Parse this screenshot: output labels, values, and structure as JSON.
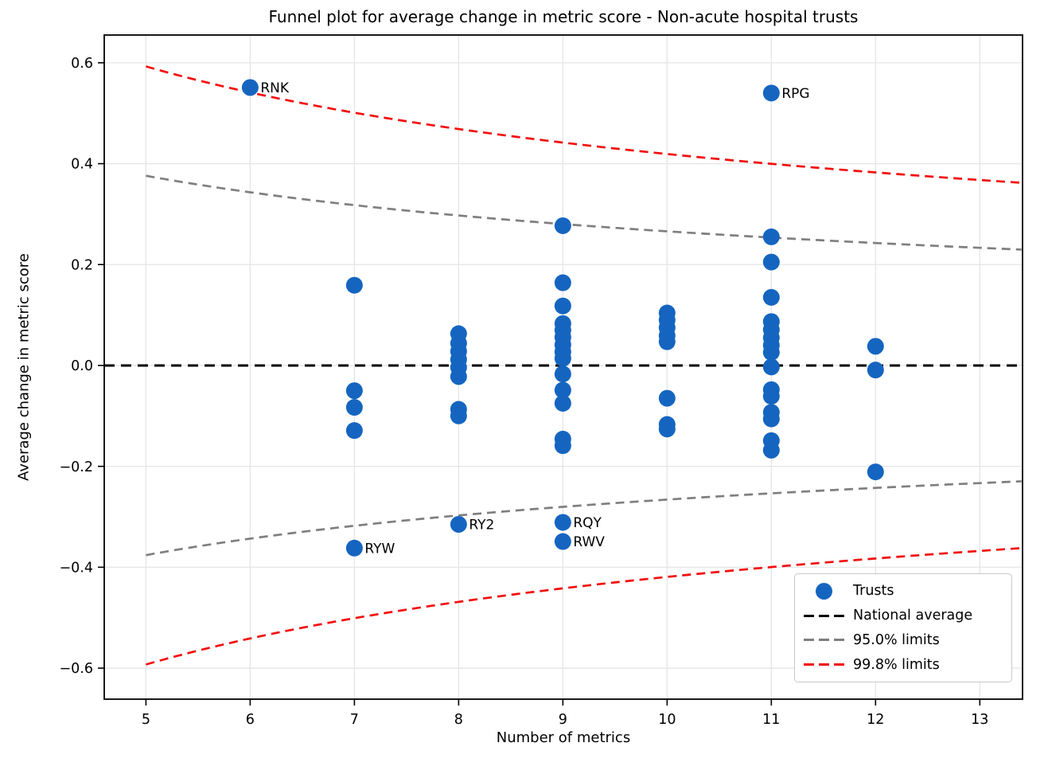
{
  "chart_data": {
    "type": "scatter",
    "title": "Funnel plot for average change in metric score - Non-acute hospital trusts",
    "xlabel": "Number of metrics",
    "ylabel": "Average change in metric score",
    "xlim": [
      4.6,
      13.41
    ],
    "ylim": [
      -0.6615,
      0.655
    ],
    "xticks": [
      5,
      6,
      7,
      8,
      9,
      10,
      11,
      12,
      13
    ],
    "yticks": [
      -0.6,
      -0.4,
      -0.2,
      0.0,
      0.2,
      0.4,
      0.6
    ],
    "grid": true,
    "legend_position": "lower right",
    "colors": {
      "trusts": "#1565c0",
      "national_average": "#000000",
      "limits_95": "#7f7f7f",
      "limits_998": "#f20d0d",
      "gridline": "#e5e5e5"
    },
    "series": [
      {
        "name": "Trusts",
        "type": "scatter",
        "color": "#1565c0",
        "points": [
          {
            "x": 6,
            "y": 0.551,
            "label": "RNK"
          },
          {
            "x": 7,
            "y": 0.159
          },
          {
            "x": 7,
            "y": -0.05
          },
          {
            "x": 7,
            "y": -0.083
          },
          {
            "x": 7,
            "y": -0.129
          },
          {
            "x": 7,
            "y": -0.362,
            "label": "RYW"
          },
          {
            "x": 8,
            "y": 0.063
          },
          {
            "x": 8,
            "y": 0.044
          },
          {
            "x": 8,
            "y": 0.028
          },
          {
            "x": 8,
            "y": 0.012
          },
          {
            "x": 8,
            "y": -0.004
          },
          {
            "x": 8,
            "y": -0.022
          },
          {
            "x": 8,
            "y": -0.087
          },
          {
            "x": 8,
            "y": -0.1
          },
          {
            "x": 8,
            "y": -0.315,
            "label": "RY2"
          },
          {
            "x": 9,
            "y": 0.277
          },
          {
            "x": 9,
            "y": 0.164
          },
          {
            "x": 9,
            "y": 0.118
          },
          {
            "x": 9,
            "y": 0.083
          },
          {
            "x": 9,
            "y": 0.07
          },
          {
            "x": 9,
            "y": 0.056
          },
          {
            "x": 9,
            "y": 0.041
          },
          {
            "x": 9,
            "y": 0.027
          },
          {
            "x": 9,
            "y": 0.014
          },
          {
            "x": 9,
            "y": -0.017
          },
          {
            "x": 9,
            "y": -0.049
          },
          {
            "x": 9,
            "y": -0.075
          },
          {
            "x": 9,
            "y": -0.146
          },
          {
            "x": 9,
            "y": -0.159
          },
          {
            "x": 9,
            "y": -0.311,
            "label": "RQY"
          },
          {
            "x": 9,
            "y": -0.349,
            "label": "RWV"
          },
          {
            "x": 10,
            "y": 0.104
          },
          {
            "x": 10,
            "y": 0.09
          },
          {
            "x": 10,
            "y": 0.075
          },
          {
            "x": 10,
            "y": 0.059
          },
          {
            "x": 10,
            "y": 0.047
          },
          {
            "x": 10,
            "y": -0.065
          },
          {
            "x": 10,
            "y": -0.117
          },
          {
            "x": 10,
            "y": -0.126
          },
          {
            "x": 11,
            "y": 0.54,
            "label": "RPG"
          },
          {
            "x": 11,
            "y": 0.255
          },
          {
            "x": 11,
            "y": 0.205
          },
          {
            "x": 11,
            "y": 0.135
          },
          {
            "x": 11,
            "y": 0.087
          },
          {
            "x": 11,
            "y": 0.071
          },
          {
            "x": 11,
            "y": 0.055
          },
          {
            "x": 11,
            "y": 0.04
          },
          {
            "x": 11,
            "y": 0.026
          },
          {
            "x": 11,
            "y": -0.003
          },
          {
            "x": 11,
            "y": -0.048
          },
          {
            "x": 11,
            "y": -0.061
          },
          {
            "x": 11,
            "y": -0.093
          },
          {
            "x": 11,
            "y": -0.106
          },
          {
            "x": 11,
            "y": -0.149
          },
          {
            "x": 11,
            "y": -0.168
          },
          {
            "x": 12,
            "y": 0.038
          },
          {
            "x": 12,
            "y": -0.009
          },
          {
            "x": 12,
            "y": -0.211
          }
        ]
      },
      {
        "name": "National average",
        "type": "hline",
        "y": 0.0,
        "color": "#000000"
      },
      {
        "name": "95.0% limits",
        "type": "funnel-limits",
        "z": 1.96,
        "std": 0.429,
        "x_start": 5,
        "x_end": 13.41,
        "color": "#7f7f7f"
      },
      {
        "name": "99.8% limits",
        "type": "funnel-limits",
        "z": 3.09,
        "std": 0.429,
        "x_start": 5,
        "x_end": 13.41,
        "color": "#f20d0d"
      }
    ]
  },
  "legend": {
    "items": [
      {
        "label": "Trusts",
        "marker": "dot",
        "color": "#1565c0"
      },
      {
        "label": "National average",
        "marker": "dashes",
        "color": "#000000"
      },
      {
        "label": "95.0% limits",
        "marker": "dashes",
        "color": "#7f7f7f"
      },
      {
        "label": "99.8% limits",
        "marker": "dashes",
        "color": "#f20d0d"
      }
    ]
  }
}
